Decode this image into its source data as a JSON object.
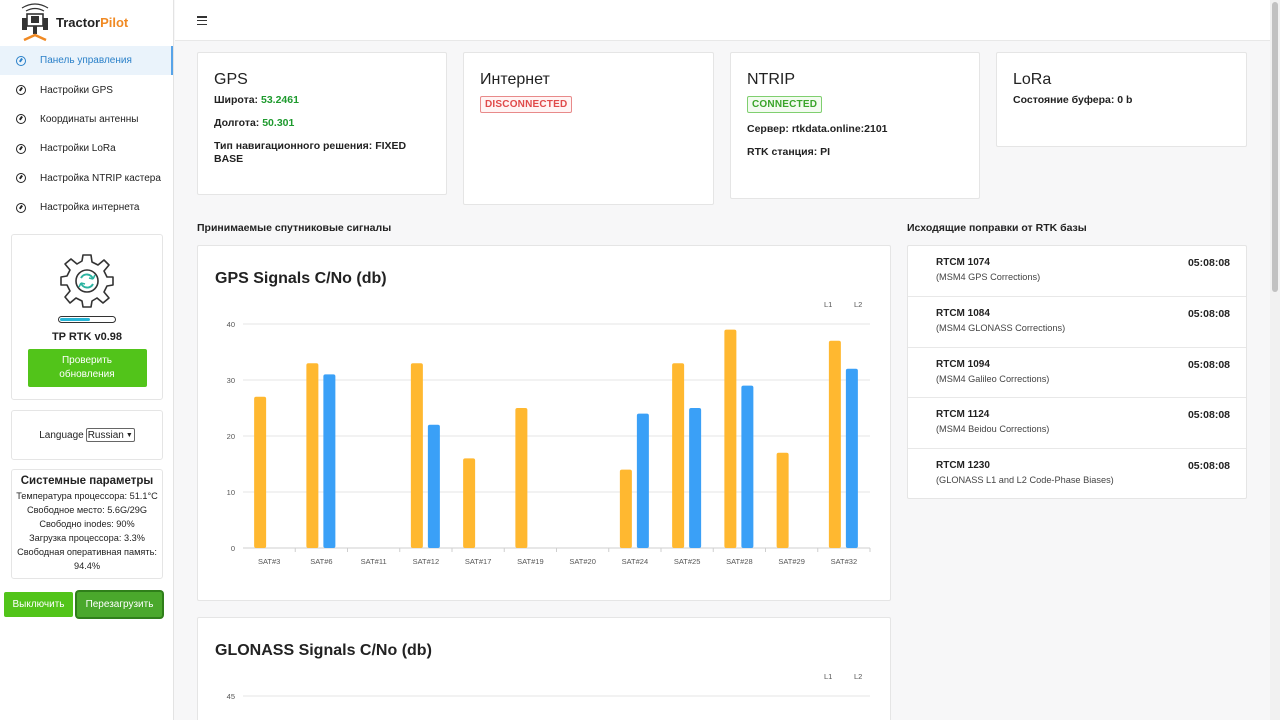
{
  "app": {
    "logo_text_a": "Tractor",
    "logo_text_b": "Pilot"
  },
  "sidebar": {
    "items": [
      {
        "label": "Панель управления",
        "active": true
      },
      {
        "label": "Настройки GPS",
        "active": false
      },
      {
        "label": "Координаты антенны",
        "active": false
      },
      {
        "label": "Настройки LoRa",
        "active": false
      },
      {
        "label": "Настройка NTRIP кастера",
        "active": false
      },
      {
        "label": "Настройка интернета",
        "active": false
      }
    ],
    "update": {
      "progress": 0.55,
      "version": "TP RTK v0.98",
      "button": "Проверить обновления"
    },
    "language": {
      "label": "Language",
      "selected": "Russian"
    },
    "system": {
      "title": "Системные параметры",
      "cpu_temp": "Температура процессора: 51.1°C",
      "free_space": "Свободное место: 5.6G/29G",
      "free_inodes": "Свободно inodes: 90%",
      "cpu_load": "Загрузка процессора: 3.3%",
      "free_ram_label": "Свободная оперативная память:",
      "free_ram_value": "94.4%"
    },
    "btn_off": "Выключить",
    "btn_reboot": "Перезагрузить"
  },
  "cards": {
    "gps": {
      "title": "GPS",
      "lat_label": "Широта:",
      "lat_value": "53.2461",
      "lon_label": "Долгота:",
      "lon_value": "50.301",
      "nav_label": "Тип навигационного решения: FIXED BASE"
    },
    "internet": {
      "title": "Интернет",
      "status": "DISCONNECTED"
    },
    "ntrip": {
      "title": "NTRIP",
      "status": "CONNECTED",
      "server": "Сервер: rtkdata.online:2101",
      "station": "RTK станция: PI"
    },
    "lora": {
      "title": "LoRa",
      "buffer": "Состояние буфера: 0 b"
    }
  },
  "sections": {
    "signals_title": "Принимаемые спутниковые сигналы",
    "corrections_title": "Исходящие поправки от RTK базы"
  },
  "colors": {
    "l1": "#ffb830",
    "l2": "#3aa0f7",
    "accent": "#52c41a",
    "active_nav": "#2a80c9"
  },
  "chart_data": [
    {
      "type": "bar",
      "title": "GPS Signals C/No (db)",
      "categories": [
        "SAT#3",
        "SAT#6",
        "SAT#11",
        "SAT#12",
        "SAT#17",
        "SAT#19",
        "SAT#20",
        "SAT#24",
        "SAT#25",
        "SAT#28",
        "SAT#29",
        "SAT#32"
      ],
      "series": [
        {
          "name": "L1",
          "values": [
            27,
            33,
            0,
            33,
            16,
            25,
            0,
            14,
            33,
            39,
            17,
            37
          ]
        },
        {
          "name": "L2",
          "values": [
            0,
            31,
            0,
            22,
            0,
            0,
            0,
            24,
            25,
            29,
            0,
            32
          ]
        }
      ],
      "ylim": [
        0,
        40
      ],
      "yticks": [
        0,
        10,
        20,
        30,
        40
      ],
      "grid": true,
      "legend": "top-right"
    },
    {
      "type": "bar",
      "title": "GLONASS Signals C/No (db)",
      "categories": [],
      "series": [
        {
          "name": "L1",
          "values": []
        },
        {
          "name": "L2",
          "values": []
        }
      ],
      "ylim": [
        0,
        45
      ],
      "yticks": [
        45
      ],
      "grid": true,
      "legend": "top-right"
    }
  ],
  "rtcm": [
    {
      "code": "RTCM 1074",
      "desc": "(MSM4 GPS Corrections)",
      "time": "05:08:08"
    },
    {
      "code": "RTCM 1084",
      "desc": "(MSM4 GLONASS Corrections)",
      "time": "05:08:08"
    },
    {
      "code": "RTCM 1094",
      "desc": "(MSM4 Galileo Corrections)",
      "time": "05:08:08"
    },
    {
      "code": "RTCM 1124",
      "desc": "(MSM4 Beidou Corrections)",
      "time": "05:08:08"
    },
    {
      "code": "RTCM 1230",
      "desc": "(GLONASS L1 and L2 Code-Phase Biases)",
      "time": "05:08:08"
    }
  ]
}
